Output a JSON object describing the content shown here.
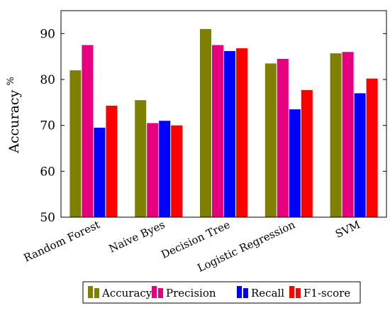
{
  "chart_data": {
    "type": "bar",
    "ylabel": "Accuracy",
    "ylabel_unit": "%",
    "categories": [
      "Random Forest",
      "Naive Byes",
      "Decision Tree",
      "Logistic Regression",
      "SVM"
    ],
    "ylim": [
      50,
      95
    ],
    "yticks": [
      50,
      60,
      70,
      80,
      90
    ],
    "grid": false,
    "legend_position": "bottom",
    "series": [
      {
        "name": "Accuracy",
        "color": "#808000",
        "values": [
          82,
          75.5,
          91,
          83.5,
          85.7
        ]
      },
      {
        "name": "Precision",
        "color": "#e6007e",
        "values": [
          87.5,
          70.5,
          87.5,
          84.5,
          86
        ]
      },
      {
        "name": "Recall",
        "color": "#0000ff",
        "values": [
          69.5,
          71,
          86.2,
          73.5,
          77
        ]
      },
      {
        "name": "F1-score",
        "color": "#ff0000",
        "values": [
          74.3,
          70,
          86.8,
          77.7,
          80.2
        ]
      }
    ]
  }
}
